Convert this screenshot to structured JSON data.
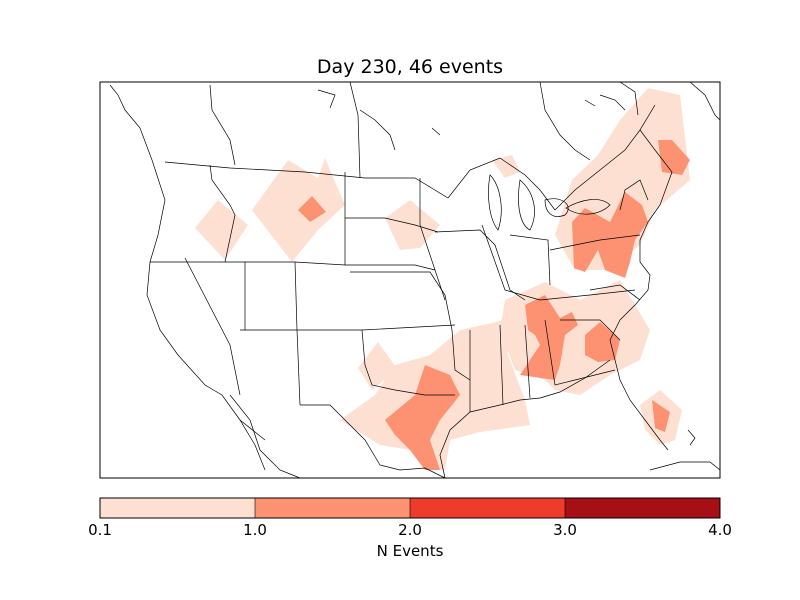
{
  "title": "Day 230, 46 events",
  "colorbar": {
    "label": "N Events",
    "ticks": [
      "0.1",
      "1.0",
      "2.0",
      "3.0",
      "4.0"
    ],
    "bins": [
      {
        "from": 0.1,
        "to": 1.0,
        "color": "#fee0d2"
      },
      {
        "from": 1.0,
        "to": 2.0,
        "color": "#fc9272"
      },
      {
        "from": 2.0,
        "to": 3.0,
        "color": "#ef3b2c"
      },
      {
        "from": 3.0,
        "to": 4.0,
        "color": "#a50f15"
      }
    ]
  },
  "map": {
    "region": "North America (contiguous US)",
    "background": "#ffffff",
    "outline_color": "#000000"
  }
}
